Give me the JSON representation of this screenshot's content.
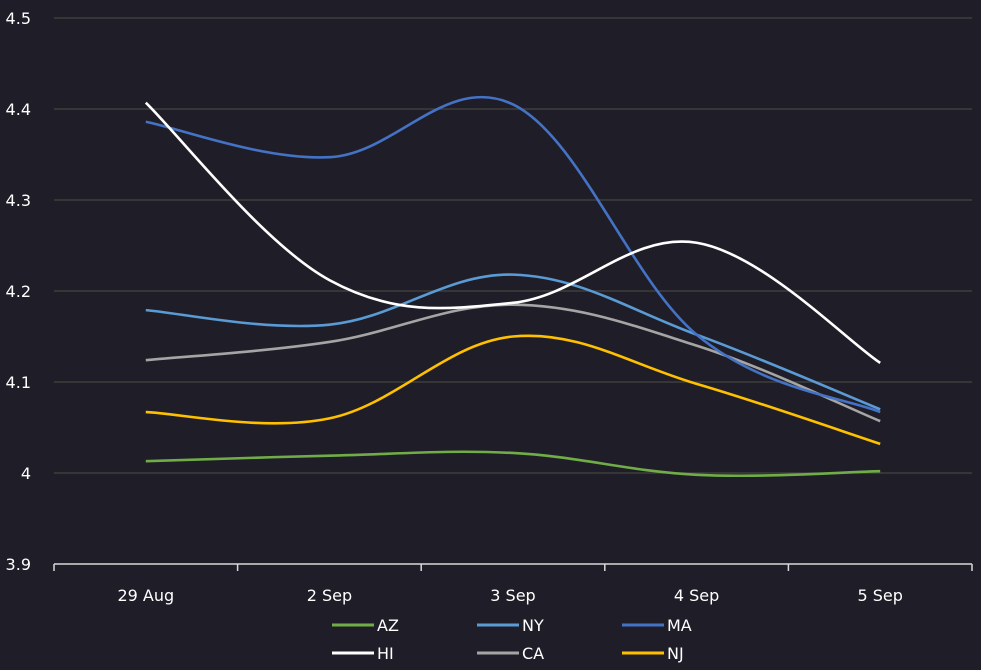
{
  "chart_data": {
    "type": "line",
    "title": "",
    "xlabel": "",
    "ylabel": "",
    "categories": [
      "29 Aug",
      "2 Sep",
      "3 Sep",
      "4 Sep",
      "5 Sep"
    ],
    "ylim": [
      3.9,
      4.5
    ],
    "yticks": [
      3.9,
      4,
      4.1,
      4.2,
      4.3,
      4.4,
      4.5
    ],
    "ytick_labels": [
      "3.9",
      "4",
      "4.1",
      "4.2",
      "4.3",
      "4.4",
      "4.5"
    ],
    "grid": true,
    "smooth": true,
    "legend_position": "bottom",
    "series": [
      {
        "name": "AZ",
        "color": "#70ad47",
        "values": [
          4.013,
          4.019,
          4.022,
          3.998,
          4.002
        ]
      },
      {
        "name": "NY",
        "color": "#5b9bd5",
        "values": [
          4.179,
          4.163,
          4.218,
          4.152,
          4.07
        ]
      },
      {
        "name": "MA",
        "color": "#4472c4",
        "values": [
          4.386,
          4.347,
          4.405,
          4.152,
          4.067
        ]
      },
      {
        "name": "HI",
        "color": "#ffffff",
        "values": [
          4.407,
          4.212,
          4.187,
          4.253,
          4.121
        ]
      },
      {
        "name": "CA",
        "color": "#a5a5a5",
        "values": [
          4.124,
          4.144,
          4.185,
          4.14,
          4.057
        ]
      },
      {
        "name": "NJ",
        "color": "#ffc000",
        "values": [
          4.067,
          4.06,
          4.15,
          4.098,
          4.032
        ]
      }
    ]
  },
  "colors": {
    "background": "#1f1e28",
    "gridline": "#3f3e3c",
    "axis": "#d9d9d9",
    "text": "#ffffff"
  }
}
